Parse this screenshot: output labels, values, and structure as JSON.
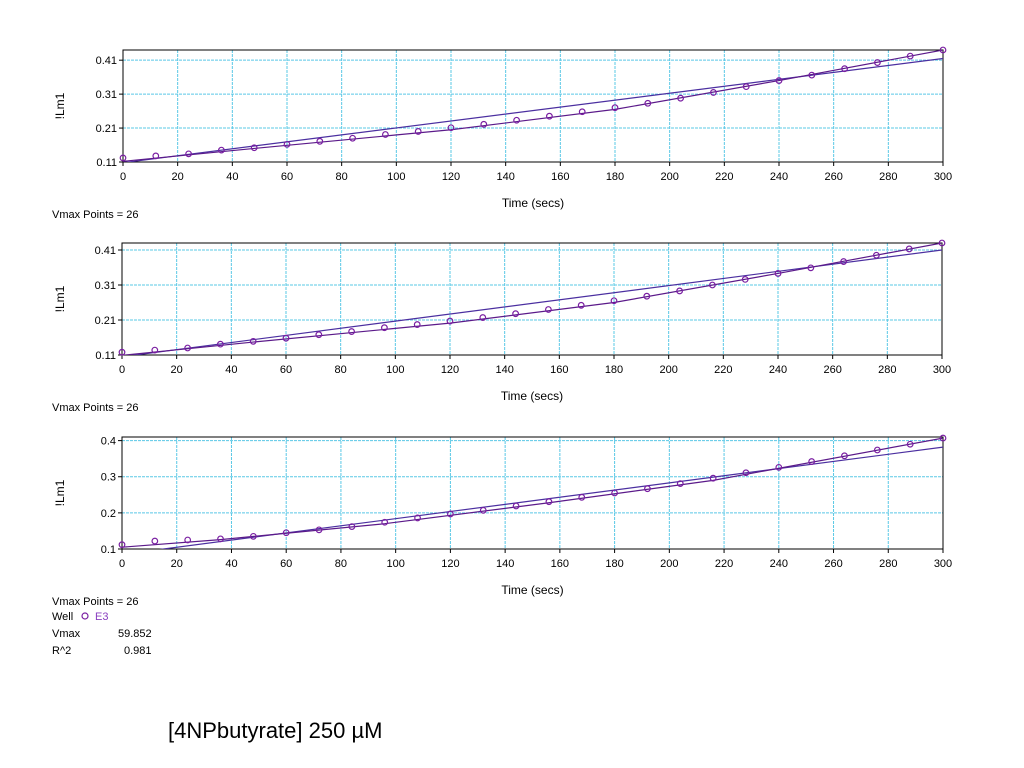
{
  "chart_data": [
    {
      "type": "scatter",
      "xlabel": "Time (secs)",
      "ylabel": "!Lm1",
      "xlim": [
        0,
        300
      ],
      "ylim": [
        0.11,
        0.44
      ],
      "x_ticks": [
        0,
        20,
        40,
        60,
        80,
        100,
        120,
        140,
        160,
        180,
        200,
        220,
        240,
        260,
        280,
        300
      ],
      "y_ticks": [
        0.11,
        0.21,
        0.31,
        0.41
      ],
      "y_tick_labels": [
        "0.11",
        "0.21",
        "0.31",
        "0.41"
      ],
      "grid": true,
      "footer": "Vmax Points = 26",
      "series": [
        {
          "name": "E3",
          "x": [
            0,
            12,
            24,
            36,
            48,
            60,
            72,
            84,
            96,
            108,
            120,
            132,
            144,
            156,
            168,
            180,
            192,
            204,
            216,
            228,
            240,
            252,
            264,
            276,
            288,
            300
          ],
          "values": [
            0.122,
            0.128,
            0.134,
            0.145,
            0.152,
            0.162,
            0.171,
            0.18,
            0.191,
            0.2,
            0.211,
            0.221,
            0.233,
            0.245,
            0.258,
            0.27,
            0.283,
            0.298,
            0.315,
            0.332,
            0.35,
            0.366,
            0.385,
            0.403,
            0.422,
            0.44
          ]
        }
      ],
      "fit_line": {
        "x": [
          0,
          300
        ],
        "y": [
          0.108,
          0.415
        ]
      },
      "trace_line": {
        "x": [
          0,
          48,
          120,
          180,
          240,
          300
        ],
        "y": [
          0.112,
          0.15,
          0.205,
          0.265,
          0.35,
          0.44
        ]
      }
    },
    {
      "type": "scatter",
      "xlabel": "Time (secs)",
      "ylabel": "!Lm1",
      "xlim": [
        0,
        300
      ],
      "ylim": [
        0.11,
        0.43
      ],
      "x_ticks": [
        0,
        20,
        40,
        60,
        80,
        100,
        120,
        140,
        160,
        180,
        200,
        220,
        240,
        260,
        280,
        300
      ],
      "y_ticks": [
        0.11,
        0.21,
        0.31,
        0.41
      ],
      "y_tick_labels": [
        "0.11",
        "0.21",
        "0.31",
        "0.41"
      ],
      "grid": true,
      "footer": "Vmax Points = 26",
      "series": [
        {
          "name": "E3",
          "x": [
            0,
            12,
            24,
            36,
            48,
            60,
            72,
            84,
            96,
            108,
            120,
            132,
            144,
            156,
            168,
            180,
            192,
            204,
            216,
            228,
            240,
            252,
            264,
            276,
            288,
            300
          ],
          "values": [
            0.118,
            0.124,
            0.13,
            0.141,
            0.149,
            0.158,
            0.168,
            0.177,
            0.188,
            0.197,
            0.207,
            0.217,
            0.228,
            0.24,
            0.252,
            0.265,
            0.278,
            0.293,
            0.31,
            0.326,
            0.343,
            0.359,
            0.377,
            0.395,
            0.413,
            0.43
          ]
        }
      ],
      "fit_line": {
        "x": [
          0,
          300
        ],
        "y": [
          0.105,
          0.41
        ]
      },
      "trace_line": {
        "x": [
          0,
          48,
          120,
          180,
          240,
          300
        ],
        "y": [
          0.109,
          0.147,
          0.201,
          0.26,
          0.343,
          0.43
        ]
      }
    },
    {
      "type": "scatter",
      "xlabel": "Time (secs)",
      "ylabel": "!Lm1",
      "xlim": [
        0,
        300
      ],
      "ylim": [
        0.1,
        0.41
      ],
      "x_ticks": [
        0,
        20,
        40,
        60,
        80,
        100,
        120,
        140,
        160,
        180,
        200,
        220,
        240,
        260,
        280,
        300
      ],
      "y_ticks": [
        0.1,
        0.2,
        0.3,
        0.4
      ],
      "y_tick_labels": [
        "0.1",
        "0.2",
        "0.3",
        "0.4"
      ],
      "grid": true,
      "footer": "Vmax Points = 26",
      "series": [
        {
          "name": "E3",
          "x": [
            0,
            12,
            24,
            36,
            48,
            60,
            72,
            84,
            96,
            108,
            120,
            132,
            144,
            156,
            168,
            180,
            192,
            204,
            216,
            228,
            240,
            252,
            264,
            276,
            288,
            300
          ],
          "values": [
            0.112,
            0.122,
            0.125,
            0.128,
            0.135,
            0.145,
            0.153,
            0.162,
            0.174,
            0.186,
            0.197,
            0.207,
            0.219,
            0.231,
            0.243,
            0.255,
            0.267,
            0.281,
            0.296,
            0.311,
            0.326,
            0.342,
            0.358,
            0.374,
            0.39,
            0.407
          ]
        }
      ],
      "fit_line": {
        "x": [
          0,
          300
        ],
        "y": [
          0.085,
          0.382
        ]
      },
      "trace_line": {
        "x": [
          0,
          36,
          96,
          156,
          216,
          300
        ],
        "y": [
          0.105,
          0.126,
          0.17,
          0.228,
          0.29,
          0.407
        ]
      }
    }
  ],
  "legend": {
    "well_label": "Well",
    "well_value": "E3",
    "vmax_label": "Vmax",
    "vmax_value": "59.852",
    "r2_label": "R^2",
    "r2_value": "0.981"
  },
  "colors": {
    "grid": "#5ac8e6",
    "marker": "#7a1fa2",
    "line": "#5b1a8a",
    "fit": "#4b2fa0",
    "legend_value": "#8a3fc0"
  },
  "caption": "[4NPbutyrate] 250 µM"
}
